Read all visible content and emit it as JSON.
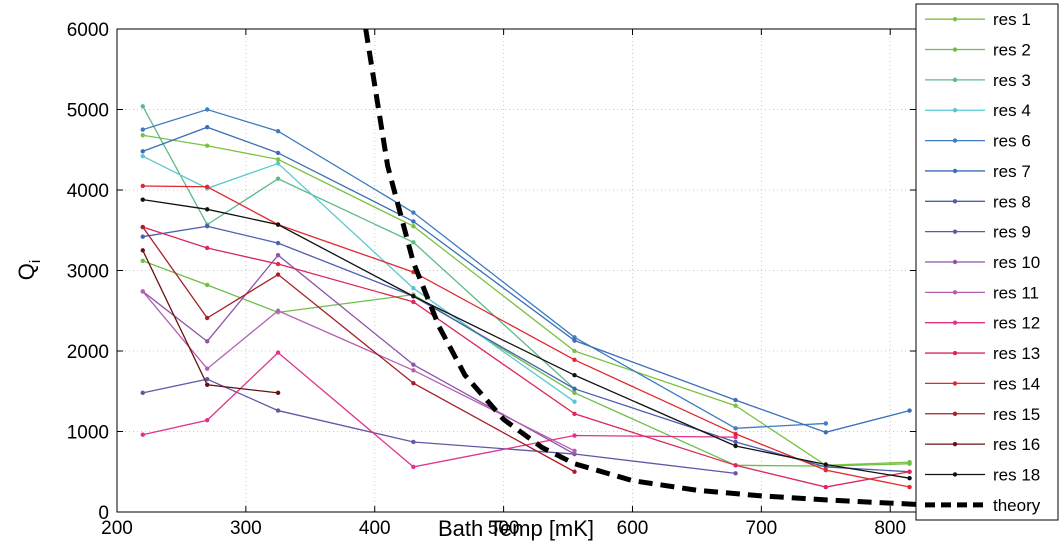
{
  "chart_data": {
    "type": "line",
    "xlabel": "Bath Temp [mK]",
    "ylabel": "Q",
    "ylabel_subscript": "i",
    "xlim": [
      200,
      820
    ],
    "ylim": [
      0,
      6000
    ],
    "xticks": [
      200,
      300,
      400,
      500,
      600,
      700,
      800
    ],
    "yticks": [
      0,
      1000,
      2000,
      3000,
      4000,
      5000,
      6000
    ],
    "grid": true,
    "legend_position": "outside-right",
    "series": [
      {
        "name": "res 1",
        "color": "#7cc242",
        "x": [
          220,
          270,
          325,
          430,
          555,
          680,
          750,
          815
        ],
        "y": [
          4680,
          4550,
          4380,
          3550,
          2000,
          1320,
          580,
          620
        ]
      },
      {
        "name": "res 2",
        "color": "#6dbf48",
        "x": [
          220,
          270,
          325,
          430,
          555,
          680,
          750,
          815
        ],
        "y": [
          3120,
          2820,
          2480,
          2700,
          1480,
          580,
          570,
          600
        ]
      },
      {
        "name": "res 3",
        "color": "#5cba88",
        "x": [
          220,
          270,
          325,
          430,
          555
        ],
        "y": [
          5040,
          3570,
          4140,
          3350,
          1530
        ]
      },
      {
        "name": "res 4",
        "color": "#5ac8d0",
        "x": [
          220,
          270,
          325,
          430,
          555
        ],
        "y": [
          4420,
          4020,
          4330,
          2780,
          1370
        ]
      },
      {
        "name": "res 6",
        "color": "#3f7cc0",
        "x": [
          220,
          270,
          325,
          430,
          555,
          680,
          750
        ],
        "y": [
          4750,
          5000,
          4730,
          3720,
          2170,
          1040,
          1100
        ]
      },
      {
        "name": "res 7",
        "color": "#3a6fb8",
        "x": [
          220,
          270,
          325,
          430,
          555,
          680,
          750,
          815
        ],
        "y": [
          4480,
          4780,
          4460,
          3610,
          2130,
          1390,
          990,
          1260
        ]
      },
      {
        "name": "res 8",
        "color": "#4a5fb0",
        "x": [
          220,
          270,
          325,
          430,
          555,
          680,
          750,
          815
        ],
        "y": [
          3420,
          3550,
          3340,
          2680,
          1530,
          870,
          560,
          500
        ]
      },
      {
        "name": "res 9",
        "color": "#6258a8",
        "x": [
          220,
          270,
          325,
          430,
          555,
          680
        ],
        "y": [
          1480,
          1650,
          1260,
          870,
          720,
          480
        ]
      },
      {
        "name": "res 10",
        "color": "#8e55a8",
        "x": [
          220,
          270,
          325,
          430,
          555
        ],
        "y": [
          2740,
          2120,
          3190,
          1830,
          720
        ]
      },
      {
        "name": "res 11",
        "color": "#b461b0",
        "x": [
          220,
          270,
          325,
          430,
          555
        ],
        "y": [
          2740,
          1780,
          2500,
          1760,
          760
        ]
      },
      {
        "name": "res 12",
        "color": "#e0338a",
        "x": [
          220,
          270,
          325,
          430,
          555,
          680
        ],
        "y": [
          960,
          1140,
          1980,
          560,
          950,
          930
        ]
      },
      {
        "name": "res 13",
        "color": "#d9295a",
        "x": [
          220,
          270,
          325,
          430,
          555,
          680,
          750,
          815
        ],
        "y": [
          3540,
          3280,
          3080,
          2610,
          1220,
          580,
          310,
          500
        ]
      },
      {
        "name": "res 14",
        "color": "#e0282e",
        "x": [
          220,
          270,
          325,
          430,
          555,
          680,
          750,
          815
        ],
        "y": [
          4050,
          4040,
          3570,
          2980,
          1890,
          970,
          520,
          310
        ]
      },
      {
        "name": "res 15",
        "color": "#a6202a",
        "x": [
          220,
          270,
          325,
          430,
          555
        ],
        "y": [
          3540,
          2410,
          2950,
          1600,
          500
        ]
      },
      {
        "name": "res 16",
        "color": "#6a1010",
        "x": [
          220,
          270,
          325
        ],
        "y": [
          3250,
          1580,
          1480
        ]
      },
      {
        "name": "res 18",
        "color": "#111111",
        "x": [
          220,
          270,
          325,
          430,
          555,
          680,
          750,
          815
        ],
        "y": [
          3880,
          3760,
          3570,
          2680,
          1700,
          820,
          590,
          420
        ]
      },
      {
        "name": "theory",
        "color": "#000000",
        "dashed": true,
        "x": [
          393,
          410,
          430,
          450,
          470,
          500,
          530,
          555,
          600,
          650,
          700,
          750,
          800,
          820
        ],
        "y": [
          6000,
          4300,
          3100,
          2300,
          1700,
          1150,
          800,
          600,
          390,
          270,
          200,
          150,
          110,
          95
        ]
      }
    ]
  }
}
